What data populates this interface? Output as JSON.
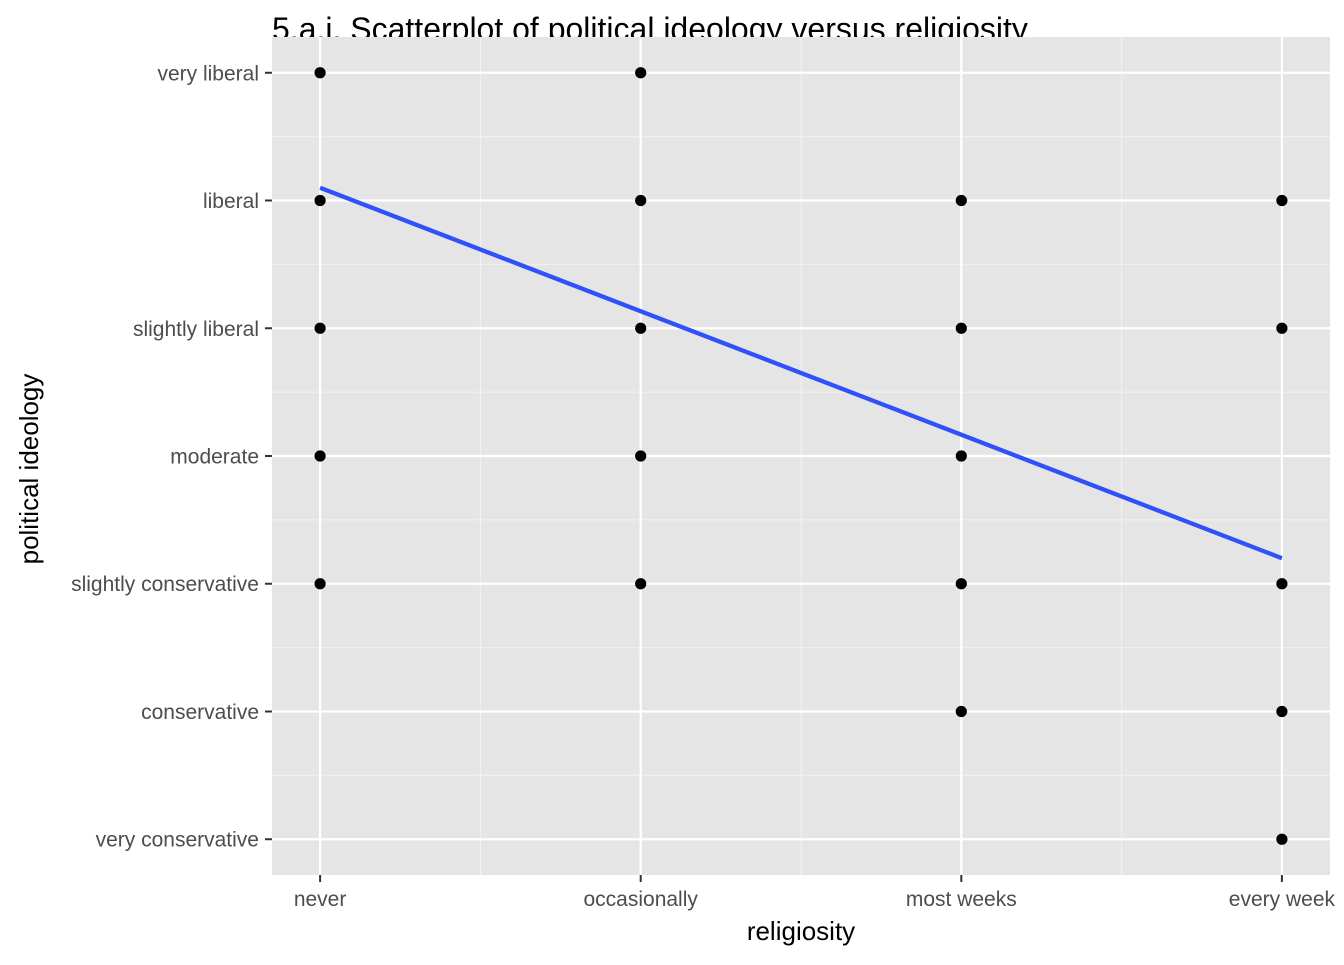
{
  "colors": {
    "panel_background": "#E5E5E5",
    "grid_major": "#FFFFFF",
    "grid_minor": "#F2F2F2",
    "point": "#000000",
    "trend_line": "#3050F8",
    "tick_mark": "#333333",
    "tick_label": "#4D4D4D"
  },
  "chart_data": {
    "type": "scatter",
    "title": "5.a.i. Scatterplot of political ideology versus religiosity",
    "xlabel": "religiosity",
    "ylabel": "political ideology",
    "x_categories": [
      "never",
      "occasionally",
      "most weeks",
      "every week"
    ],
    "y_categories": [
      "very conservative",
      "conservative",
      "slightly conservative",
      "moderate",
      "slightly liberal",
      "liberal",
      "very liberal"
    ],
    "x_scale": {
      "type": "discrete",
      "range": [
        0.85,
        4.15
      ]
    },
    "y_scale": {
      "type": "discrete",
      "range": [
        0.72,
        7.28
      ]
    },
    "grid": true,
    "legend": "none",
    "points": [
      {
        "x": "never",
        "y": "very liberal"
      },
      {
        "x": "never",
        "y": "liberal"
      },
      {
        "x": "never",
        "y": "slightly liberal"
      },
      {
        "x": "never",
        "y": "moderate"
      },
      {
        "x": "never",
        "y": "slightly conservative"
      },
      {
        "x": "occasionally",
        "y": "very liberal"
      },
      {
        "x": "occasionally",
        "y": "liberal"
      },
      {
        "x": "occasionally",
        "y": "slightly liberal"
      },
      {
        "x": "occasionally",
        "y": "moderate"
      },
      {
        "x": "occasionally",
        "y": "slightly conservative"
      },
      {
        "x": "most weeks",
        "y": "liberal"
      },
      {
        "x": "most weeks",
        "y": "slightly liberal"
      },
      {
        "x": "most weeks",
        "y": "moderate"
      },
      {
        "x": "most weeks",
        "y": "slightly conservative"
      },
      {
        "x": "most weeks",
        "y": "conservative"
      },
      {
        "x": "every week",
        "y": "liberal"
      },
      {
        "x": "every week",
        "y": "slightly liberal"
      },
      {
        "x": "every week",
        "y": "slightly conservative"
      },
      {
        "x": "every week",
        "y": "conservative"
      },
      {
        "x": "every week",
        "y": "very conservative"
      }
    ],
    "trend_line": {
      "method": "linear",
      "x": [
        1,
        4
      ],
      "y": [
        6.1,
        3.2
      ]
    }
  }
}
